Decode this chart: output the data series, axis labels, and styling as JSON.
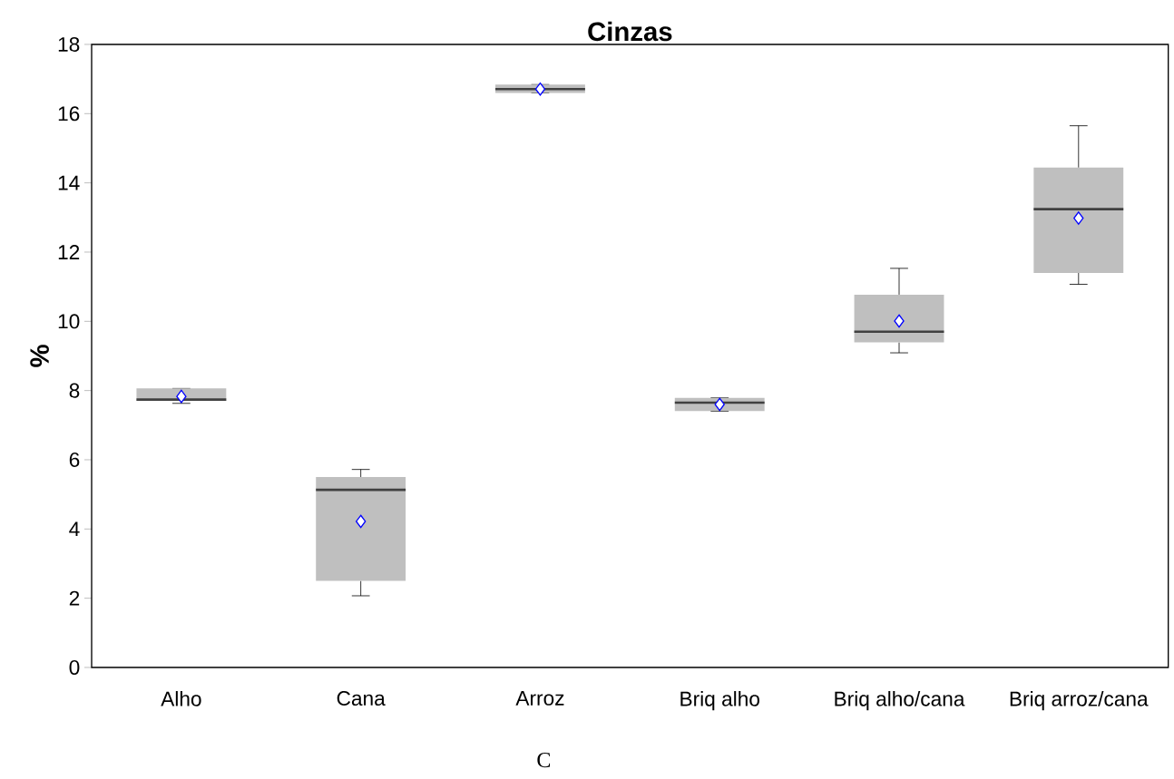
{
  "chart_data": {
    "type": "box",
    "title": "Cinzas",
    "ylabel": "%",
    "categories": [
      "Alho",
      "Cana",
      "Arroz",
      "Briq alho",
      "Briq alho/cana",
      "Briq arroz/cana"
    ],
    "boxes": [
      {
        "low": 7.63,
        "q1": 7.7,
        "median": 7.74,
        "q3": 8.06,
        "high": 8.06,
        "mean": 7.83
      },
      {
        "low": 2.07,
        "q1": 2.5,
        "median": 5.13,
        "q3": 5.5,
        "high": 5.72,
        "mean": 4.22
      },
      {
        "low": 16.6,
        "q1": 16.6,
        "median": 16.71,
        "q3": 16.84,
        "high": 16.84,
        "mean": 16.71
      },
      {
        "low": 7.4,
        "q1": 7.41,
        "median": 7.65,
        "q3": 7.79,
        "high": 7.79,
        "mean": 7.6
      },
      {
        "low": 9.09,
        "q1": 9.39,
        "median": 9.7,
        "q3": 10.77,
        "high": 11.53,
        "mean": 10.01
      },
      {
        "low": 11.07,
        "q1": 11.4,
        "median": 13.24,
        "q3": 14.44,
        "high": 15.65,
        "mean": 12.98
      }
    ],
    "color": "#bfbfbf",
    "marker": "diamond",
    "ylim": [
      0,
      18
    ],
    "yticks": [
      0,
      2,
      4,
      6,
      8,
      10,
      12,
      14,
      16,
      18
    ],
    "grid": false,
    "annotations": [
      "C"
    ]
  }
}
